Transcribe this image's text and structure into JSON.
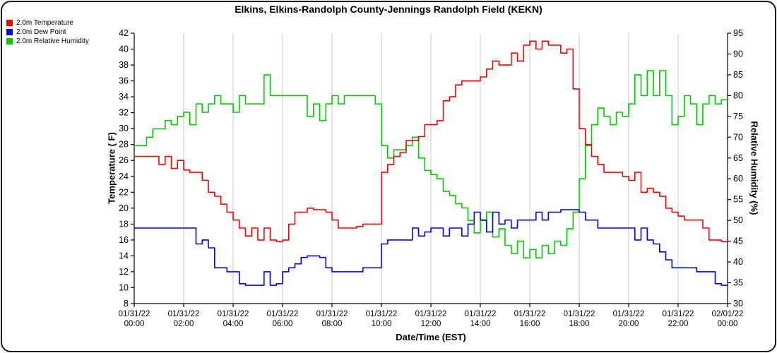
{
  "title": "Elkins, Elkins-Randolph County-Jennings Randolph Field (KEKN)",
  "chart_data": {
    "type": "line",
    "title": "Elkins, Elkins-Randolph County-Jennings Randolph Field (KEKN)",
    "xlabel": "Date/Time (EST)",
    "ylabel_left": "Temperature ( F)",
    "ylabel_right": "Relative Humidity (%)",
    "legend_position": "top-left",
    "grid": "vertical",
    "grid_color": "#c9c9c9",
    "axis_color": "#000000",
    "line_style": "step-after",
    "y_left": {
      "min": 8,
      "max": 42,
      "step": 2
    },
    "y_right": {
      "min": 30,
      "max": 95,
      "step": 5
    },
    "x_start_hours": 0,
    "x_step_hours": 0.25,
    "x_end_hours": 24,
    "x_ticks": [
      {
        "t": 0,
        "date": "01/31/22",
        "time": "00:00"
      },
      {
        "t": 2,
        "date": "01/31/22",
        "time": "02:00"
      },
      {
        "t": 4,
        "date": "01/31/22",
        "time": "04:00"
      },
      {
        "t": 6,
        "date": "01/31/22",
        "time": "06:00"
      },
      {
        "t": 8,
        "date": "01/31/22",
        "time": "08:00"
      },
      {
        "t": 10,
        "date": "01/31/22",
        "time": "10:00"
      },
      {
        "t": 12,
        "date": "01/31/22",
        "time": "12:00"
      },
      {
        "t": 14,
        "date": "01/31/22",
        "time": "14:00"
      },
      {
        "t": 16,
        "date": "01/31/22",
        "time": "16:00"
      },
      {
        "t": 18,
        "date": "01/31/22",
        "time": "18:00"
      },
      {
        "t": 20,
        "date": "01/31/22",
        "time": "20:00"
      },
      {
        "t": 22,
        "date": "01/31/22",
        "time": "22:00"
      },
      {
        "t": 24,
        "date": "02/01/22",
        "time": "00:00"
      }
    ],
    "series": [
      {
        "name": "2.0m Temperature",
        "axis": "left",
        "color": "#ff0000",
        "values": [
          26.5,
          26.5,
          26.5,
          26.5,
          25.5,
          26.5,
          25,
          26,
          24.8,
          24.5,
          24.5,
          23.5,
          22,
          21.5,
          20.5,
          19.5,
          18.5,
          17.5,
          16.5,
          17.5,
          16,
          17.5,
          16,
          15.8,
          16,
          18,
          19.5,
          19.5,
          20,
          19.8,
          19.8,
          19.5,
          18.5,
          17.5,
          17.5,
          17.5,
          17.7,
          18,
          18,
          18,
          24.5,
          25.5,
          26.5,
          27,
          28.5,
          28.5,
          29,
          30.5,
          30.5,
          31,
          33.5,
          34,
          35.5,
          36,
          36,
          36,
          36.5,
          37.5,
          38.5,
          38,
          38,
          39.5,
          38.5,
          40.5,
          41,
          40,
          41,
          40.5,
          40.5,
          39.5,
          40,
          35,
          30,
          28,
          26.5,
          25.5,
          24.5,
          24.5,
          24.5,
          24,
          23.5,
          24.5,
          22,
          22.5,
          22,
          21.5,
          20,
          19.5,
          19,
          18.5,
          18.5,
          18.5,
          17.5,
          16,
          16,
          15.8,
          15.8
        ]
      },
      {
        "name": "2.0m Dew Point",
        "axis": "left",
        "color": "#0000ff",
        "values": [
          17.5,
          17.5,
          17.5,
          17.5,
          17.5,
          17.5,
          17.5,
          17.5,
          17.5,
          17.5,
          15.5,
          16,
          15,
          12.5,
          12.5,
          12,
          12,
          10.5,
          10.3,
          10.3,
          10.3,
          12,
          10.3,
          10.5,
          12,
          12.5,
          13,
          13.8,
          14,
          14,
          13.8,
          12.5,
          12,
          12,
          12,
          12,
          12,
          12.5,
          12.5,
          12.5,
          15.5,
          16,
          16,
          16,
          16,
          17.5,
          16.5,
          17,
          17.5,
          17.5,
          16.5,
          17.5,
          17.5,
          16.5,
          18,
          19.5,
          18.5,
          17,
          19.5,
          18,
          18.5,
          17.5,
          18.5,
          18.5,
          18.5,
          19.5,
          18.5,
          19.5,
          19.5,
          19.8,
          19.8,
          19.8,
          19.5,
          18.5,
          18.5,
          17.5,
          17.5,
          17.5,
          17.5,
          17.5,
          17.5,
          16,
          17.5,
          16,
          15.5,
          14.5,
          13.5,
          12.5,
          12.5,
          12.5,
          12.5,
          12,
          12,
          12,
          10.5,
          10.3,
          10.3
        ]
      },
      {
        "name": "2.0m Relative Humidity",
        "axis": "right",
        "color": "#00cd00",
        "values": [
          68,
          68,
          70,
          72,
          72,
          74,
          73,
          75,
          76,
          73,
          78,
          76,
          78,
          80,
          78,
          78,
          76,
          80,
          78,
          78,
          78,
          85,
          80,
          80,
          80,
          80,
          80,
          80,
          75,
          78,
          74,
          78,
          80,
          78,
          80,
          80,
          80,
          80,
          80,
          78,
          68,
          65,
          67,
          67,
          68,
          70,
          65,
          62,
          61,
          60,
          57,
          56,
          54,
          53,
          50,
          47,
          50,
          52,
          46,
          48,
          44,
          42,
          45,
          41,
          43,
          41,
          44,
          42,
          45,
          44,
          48,
          52,
          60,
          68,
          73,
          77,
          75,
          73,
          76,
          75,
          78,
          85,
          80,
          86,
          80,
          86,
          80,
          73,
          75,
          80,
          78,
          73,
          78,
          80,
          78,
          79,
          79
        ]
      }
    ]
  }
}
